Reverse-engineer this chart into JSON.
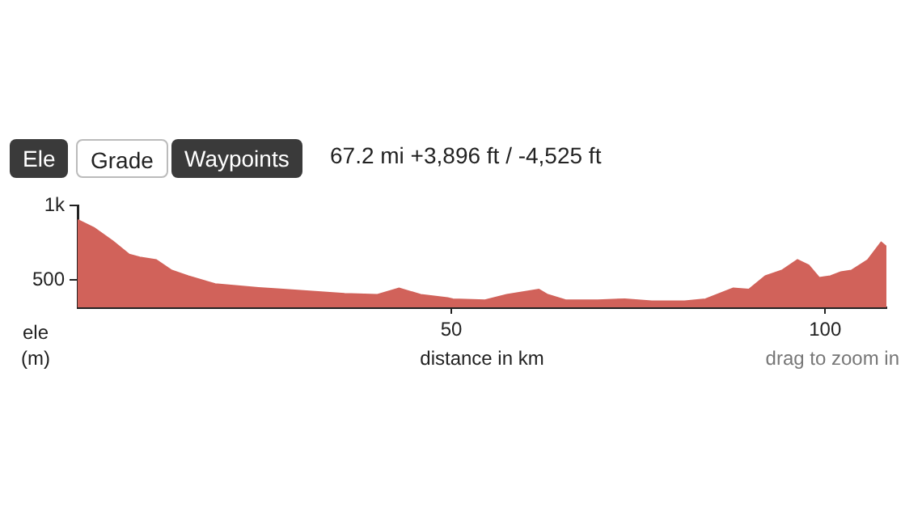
{
  "chart_data": {
    "type": "area",
    "xlabel": "distance in km",
    "ylabel": "ele (m)",
    "annotations": [
      "Ele",
      "Grade",
      "Waypoints",
      "67.2 mi +3,896 ft / -4,525 ft",
      "drag to zoom in"
    ],
    "x": [
      0,
      2.2,
      4.7,
      6.9,
      8.3,
      10.5,
      12.6,
      14.8,
      18.4,
      24.2,
      27.1,
      35.7,
      40.1,
      43,
      45.9,
      49.5,
      50.2,
      54.5,
      57.4,
      61.7,
      62.9,
      65.3,
      69.6,
      73.2,
      76.8,
      81.2,
      84,
      87.7,
      89.8,
      92,
      94.2,
      96.3,
      97.8,
      99.2,
      100.7,
      102.1,
      103.5,
      105.7,
      107.5,
      108.2
    ],
    "series": [
      {
        "color": "#d1625a",
        "values": [
          903,
          849,
          759,
          670,
          651,
          633,
          562,
          525,
          471,
          446,
          436,
          406,
          399,
          443,
          399,
          378,
          370,
          363,
          399,
          435,
          399,
          363,
          363,
          370,
          356,
          356,
          370,
          443,
          435,
          525,
          562,
          633,
          597,
          514,
          525,
          551,
          562,
          633,
          752,
          723
        ]
      }
    ],
    "xlim": [
      0,
      108.2
    ],
    "ylim": [
      315,
      1000
    ],
    "xticks": [
      50,
      100
    ],
    "yticks": [
      500,
      {
        "value": 1000,
        "label": "1k"
      }
    ],
    "grid": false,
    "legend": false,
    "marker": "none"
  }
}
